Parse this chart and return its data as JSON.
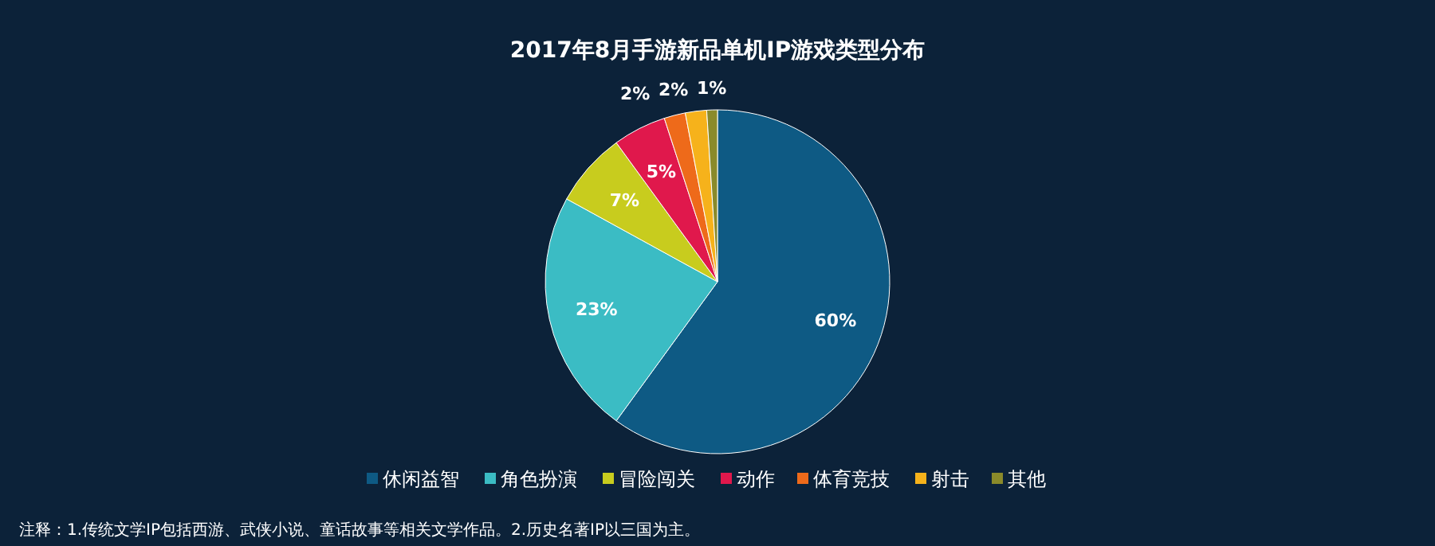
{
  "chart_data": {
    "type": "pie",
    "title": "2017年8月手游新品单机IP游戏类型分布",
    "categories": [
      "休闲益智",
      "角色扮演",
      "冒险闯关",
      "动作",
      "体育竞技",
      "射击",
      "其他"
    ],
    "values": [
      60,
      23,
      7,
      5,
      2,
      2,
      1
    ],
    "value_labels": [
      "60%",
      "23%",
      "7%",
      "5%",
      "2%",
      "2%",
      "1%"
    ],
    "colors": [
      "#0e5a84",
      "#3bbcc4",
      "#c8cc1e",
      "#e0184c",
      "#ee6a1a",
      "#f6b21b",
      "#8a8a2a"
    ],
    "legend": "bottom",
    "annotations": [
      "注释：1.传统文学IP包括西游、武侠小说、童话故事等相关文学作品。2.历史名著IP以三国为主。"
    ]
  }
}
